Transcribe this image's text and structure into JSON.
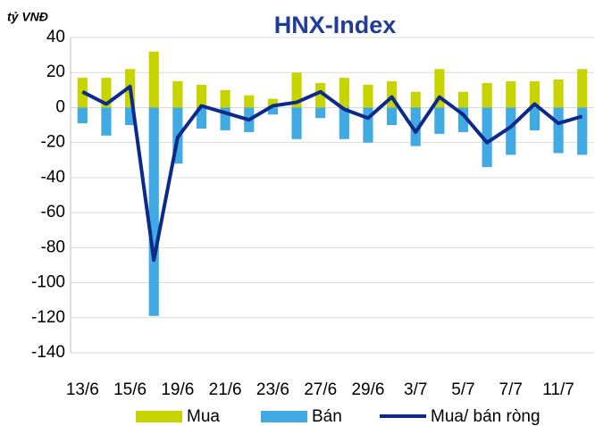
{
  "chart_data": {
    "type": "bar_line",
    "title": "HNX-Index",
    "y_label": "tỷ VNĐ",
    "categories": [
      "13/6",
      null,
      "15/6",
      null,
      "19/6",
      null,
      "21/6",
      null,
      "23/6",
      null,
      "27/6",
      null,
      "29/6",
      null,
      "3/7",
      null,
      "5/7",
      null,
      "7/7",
      null,
      "11/7",
      null
    ],
    "series": [
      {
        "name": "Mua",
        "type": "bar",
        "color": "#c8d400",
        "values": [
          17,
          17,
          22,
          32,
          15,
          13,
          10,
          7,
          5,
          20,
          14,
          17,
          13,
          15,
          9,
          22,
          9,
          14,
          15,
          15,
          16,
          22
        ]
      },
      {
        "name": "Bán",
        "type": "bar",
        "color": "#41aae2",
        "values": [
          -9,
          -16,
          -10,
          -119,
          -32,
          -12,
          -13,
          -14,
          -4,
          -18,
          -6,
          -18,
          -20,
          -10,
          -22,
          -15,
          -14,
          -34,
          -27,
          -13,
          -26,
          -27
        ]
      },
      {
        "name": "Mua/ bán ròng",
        "type": "line",
        "color": "#0c2a8c",
        "values": [
          9,
          2,
          12,
          -87,
          -17,
          1,
          -3,
          -7,
          1,
          3,
          9,
          -1,
          -6,
          6,
          -14,
          6,
          -4,
          -20,
          -11,
          2,
          -9,
          -5
        ]
      }
    ],
    "ylim": [
      -140,
      40
    ],
    "yticks": [
      -140,
      -120,
      -100,
      -80,
      -60,
      -40,
      -20,
      0,
      20,
      40
    ],
    "grid": true
  }
}
